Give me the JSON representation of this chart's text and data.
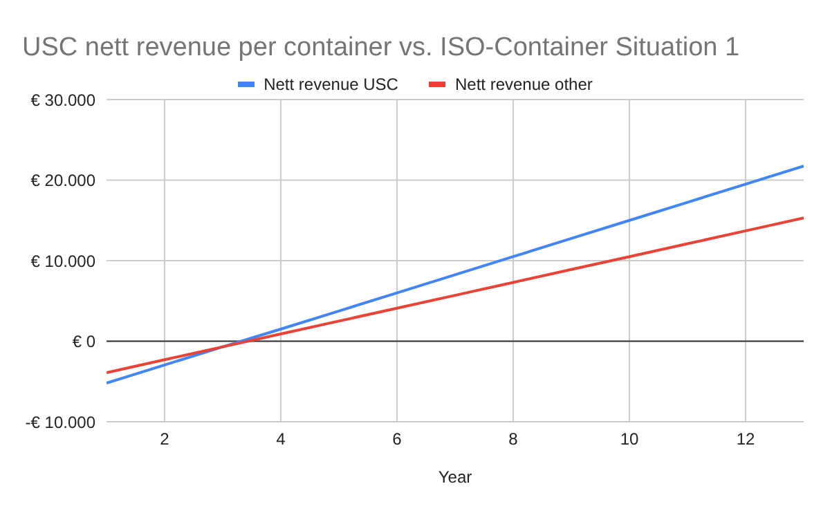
{
  "chart_data": {
    "type": "line",
    "title": "USC nett revenue per container vs. ISO-Container Situation 1",
    "xlabel": "Year",
    "x": [
      1,
      2,
      3,
      4,
      5,
      6,
      7,
      8,
      9,
      10,
      11,
      12,
      13
    ],
    "series": [
      {
        "name": "Nett revenue USC",
        "color": "#4285f4",
        "values": [
          -5200,
          -2950,
          -700,
          1500,
          3750,
          6000,
          8250,
          10500,
          12750,
          15000,
          17250,
          19500,
          21750
        ]
      },
      {
        "name": "Nett revenue other",
        "color": "#ea4335",
        "values": [
          -3900,
          -2300,
          -700,
          900,
          2500,
          4100,
          5700,
          7300,
          8900,
          10500,
          12100,
          13700,
          15300
        ]
      }
    ],
    "xlim": [
      1,
      13
    ],
    "xticks": [
      2,
      4,
      6,
      8,
      10,
      12
    ],
    "ylim": [
      -10000,
      30000
    ],
    "yticks": [
      {
        "value": -10000,
        "label": "-€ 10.000"
      },
      {
        "value": 0,
        "label": "€ 0"
      },
      {
        "value": 10000,
        "label": "€ 10.000"
      },
      {
        "value": 20000,
        "label": "€ 20.000"
      },
      {
        "value": 30000,
        "label": "€ 30.000"
      }
    ],
    "ref_lines": [
      {
        "axis": "y",
        "value": 0,
        "color": "#333333"
      }
    ],
    "grid": true,
    "legend": "top",
    "marker": "none",
    "line_style": "solid"
  }
}
